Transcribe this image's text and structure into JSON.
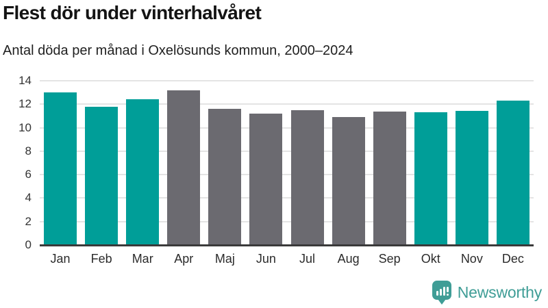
{
  "header": {
    "title": "Flest dör under vinterhalvåret",
    "subtitle": "Antal döda per månad i Oxelösunds kommun, 2000–2024"
  },
  "chart_data": {
    "type": "bar",
    "title": "Flest dör under vinterhalvåret",
    "subtitle": "Antal döda per månad i Oxelösunds kommun, 2000–2024",
    "categories": [
      "Jan",
      "Feb",
      "Mar",
      "Apr",
      "Maj",
      "Jun",
      "Jul",
      "Aug",
      "Sep",
      "Okt",
      "Nov",
      "Dec"
    ],
    "values": [
      13.0,
      11.8,
      12.45,
      13.2,
      11.6,
      11.2,
      11.5,
      10.9,
      11.35,
      11.3,
      11.45,
      12.3
    ],
    "bar_colors": [
      "#009e98",
      "#009e98",
      "#009e98",
      "#6b6a70",
      "#6b6a70",
      "#6b6a70",
      "#6b6a70",
      "#6b6a70",
      "#6b6a70",
      "#009e98",
      "#009e98",
      "#009e98"
    ],
    "xlabel": "",
    "ylabel": "",
    "ylim": [
      0,
      14
    ],
    "yticks": [
      0,
      2,
      4,
      6,
      8,
      10,
      12,
      14
    ],
    "grid": "horizontal",
    "legend_position": "none"
  },
  "branding": {
    "name": "Newsworthy",
    "icon": "newsworthy-chart-bubble-icon",
    "color": "#3f9d96"
  },
  "palette": {
    "winter_bar": "#009e98",
    "summer_bar": "#6b6a70",
    "gridline": "#e4e4e4",
    "axis_line": "#3a3a3a",
    "brand": "#3f9d96"
  }
}
